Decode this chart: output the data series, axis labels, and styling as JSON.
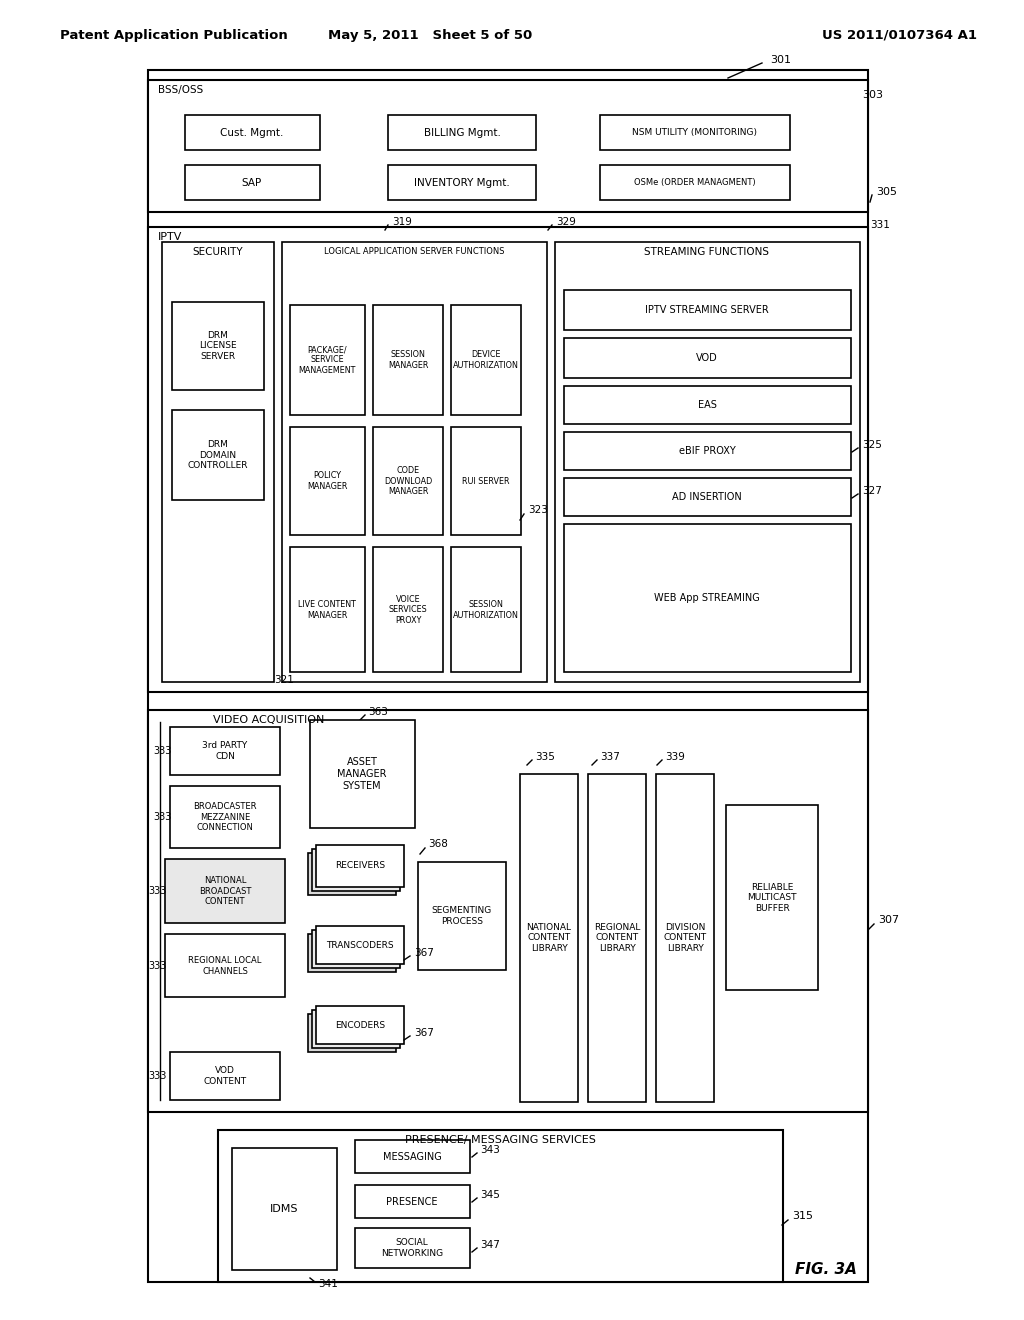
{
  "header_left": "Patent Application Publication",
  "header_mid": "May 5, 2011   Sheet 5 of 50",
  "header_right": "US 2011/0107364 A1",
  "fig_label": "FIG. 3A",
  "bg_color": "#ffffff",
  "line_color": "#000000"
}
